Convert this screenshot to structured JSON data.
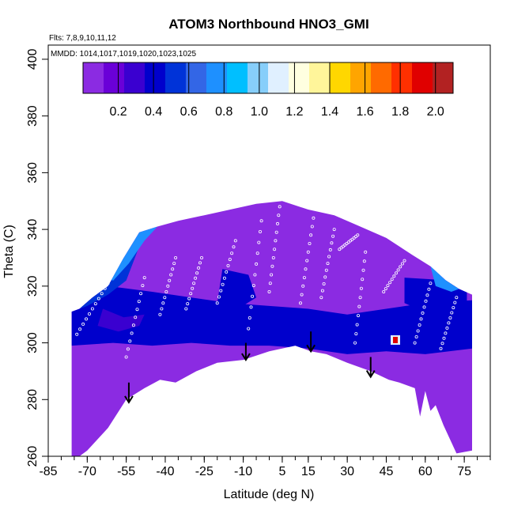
{
  "chart_data": {
    "type": "heatmap",
    "title": "ATOM3 Northbound HNO3_GMI",
    "flights_label": "Flts: 7,8,9,10,11,12",
    "dates_label": "MMDD: 1014,1017,1019,1020,1023,1025",
    "xlabel": "Latitude (deg N)",
    "ylabel": "Theta (C)",
    "xlim": [
      -85,
      85
    ],
    "ylim": [
      260,
      405
    ],
    "x_ticks": [
      -85,
      -70,
      -55,
      -40,
      -25,
      -10,
      5,
      15,
      30,
      45,
      60,
      75
    ],
    "y_ticks": [
      260,
      280,
      300,
      320,
      340,
      360,
      380,
      400
    ],
    "colorbar": {
      "range": [
        0.0,
        2.1
      ],
      "ticks": [
        0.2,
        0.4,
        0.6,
        0.8,
        1.0,
        1.2,
        1.4,
        1.6,
        1.8,
        2.0
      ],
      "tick_labels": [
        "0.2",
        "0.4",
        "0.6",
        "0.8",
        "1.0",
        "1.2",
        "1.4",
        "1.6",
        "1.8",
        "2.0"
      ],
      "colors": [
        "#8B2BE2",
        "#6A00D8",
        "#3A00D0",
        "#0000CC",
        "#0033D8",
        "#3366E6",
        "#1E90FF",
        "#00BFFF",
        "#87CEFA",
        "#E0F0FF",
        "#FFFFE0",
        "#FFF59A",
        "#FFD700",
        "#FFA500",
        "#FF6A00",
        "#FF3000",
        "#E00000",
        "#B22222"
      ]
    },
    "upper_boundary": [
      {
        "lat": -76,
        "theta": 311
      },
      {
        "lat": -73,
        "theta": 312
      },
      {
        "lat": -68,
        "theta": 316
      },
      {
        "lat": -62,
        "theta": 320
      },
      {
        "lat": -56,
        "theta": 330
      },
      {
        "lat": -50,
        "theta": 339
      },
      {
        "lat": -43,
        "theta": 341
      },
      {
        "lat": -35,
        "theta": 343
      },
      {
        "lat": -25,
        "theta": 345
      },
      {
        "lat": -15,
        "theta": 347
      },
      {
        "lat": -5,
        "theta": 349
      },
      {
        "lat": 5,
        "theta": 350
      },
      {
        "lat": 15,
        "theta": 347
      },
      {
        "lat": 25,
        "theta": 345
      },
      {
        "lat": 35,
        "theta": 341
      },
      {
        "lat": 45,
        "theta": 337
      },
      {
        "lat": 55,
        "theta": 331
      },
      {
        "lat": 62,
        "theta": 327
      },
      {
        "lat": 68,
        "theta": 322
      },
      {
        "lat": 73,
        "theta": 319
      },
      {
        "lat": 78,
        "theta": 317
      }
    ],
    "lower_boundary": [
      {
        "lat": 78,
        "theta": 262
      },
      {
        "lat": 72,
        "theta": 261
      },
      {
        "lat": 67,
        "theta": 271
      },
      {
        "lat": 64,
        "theta": 278
      },
      {
        "lat": 62,
        "theta": 276
      },
      {
        "lat": 60,
        "theta": 283
      },
      {
        "lat": 58,
        "theta": 274
      },
      {
        "lat": 56,
        "theta": 284
      },
      {
        "lat": 50,
        "theta": 286
      },
      {
        "lat": 46,
        "theta": 287
      },
      {
        "lat": 39,
        "theta": 290
      },
      {
        "lat": 30,
        "theta": 293
      },
      {
        "lat": 22,
        "theta": 296
      },
      {
        "lat": 16,
        "theta": 297
      },
      {
        "lat": 10,
        "theta": 299
      },
      {
        "lat": 0,
        "theta": 297
      },
      {
        "lat": -10,
        "theta": 294
      },
      {
        "lat": -20,
        "theta": 293
      },
      {
        "lat": -28,
        "theta": 290
      },
      {
        "lat": -36,
        "theta": 286
      },
      {
        "lat": -42,
        "theta": 287
      },
      {
        "lat": -48,
        "theta": 284
      },
      {
        "lat": -55,
        "theta": 280
      },
      {
        "lat": -62,
        "theta": 270
      },
      {
        "lat": -70,
        "theta": 262
      },
      {
        "lat": -73,
        "theta": 260
      },
      {
        "lat": -76,
        "theta": 260
      }
    ],
    "field_regions": [
      {
        "name": "deep-blue-troposphere",
        "value": 0.35,
        "points": [
          [
            -76,
            311
          ],
          [
            -62,
            320
          ],
          [
            -45,
            318
          ],
          [
            -30,
            316
          ],
          [
            -15,
            314
          ],
          [
            0,
            313
          ],
          [
            15,
            312
          ],
          [
            30,
            310
          ],
          [
            45,
            312
          ],
          [
            60,
            314
          ],
          [
            78,
            315
          ],
          [
            78,
            298
          ],
          [
            60,
            296
          ],
          [
            45,
            297
          ],
          [
            30,
            296
          ],
          [
            15,
            298
          ],
          [
            0,
            299
          ],
          [
            -15,
            299
          ],
          [
            -30,
            300
          ],
          [
            -45,
            299
          ],
          [
            -60,
            300
          ],
          [
            -76,
            299
          ]
        ]
      },
      {
        "name": "blue-upper-left",
        "value": 0.5,
        "points": [
          [
            -76,
            311
          ],
          [
            -73,
            312
          ],
          [
            -68,
            316
          ],
          [
            -62,
            320
          ],
          [
            -56,
            330
          ],
          [
            -50,
            334
          ],
          [
            -55,
            322
          ],
          [
            -62,
            317
          ],
          [
            -70,
            313
          ]
        ]
      },
      {
        "name": "light-blue-upper-left",
        "value": 0.7,
        "points": [
          [
            -66,
            323
          ],
          [
            -56,
            330
          ],
          [
            -50,
            339
          ],
          [
            -43,
            341
          ],
          [
            -48,
            336
          ],
          [
            -54,
            328
          ],
          [
            -60,
            322
          ]
        ]
      },
      {
        "name": "blue-patch-center",
        "value": 0.45,
        "points": [
          [
            -18,
            326
          ],
          [
            -8,
            324
          ],
          [
            -5,
            316
          ],
          [
            -12,
            312
          ],
          [
            -20,
            314
          ]
        ]
      },
      {
        "name": "blue-patch-right",
        "value": 0.45,
        "points": [
          [
            52,
            323
          ],
          [
            70,
            322
          ],
          [
            76,
            318
          ],
          [
            76,
            310
          ],
          [
            62,
            310
          ],
          [
            52,
            314
          ]
        ]
      },
      {
        "name": "light-blue-right",
        "value": 0.7,
        "points": [
          [
            62,
            327
          ],
          [
            68,
            322
          ],
          [
            73,
            319
          ],
          [
            70,
            318
          ],
          [
            64,
            320
          ]
        ]
      },
      {
        "name": "blue-band-lower-left",
        "value": 0.3,
        "points": [
          [
            -64,
            312
          ],
          [
            -56,
            309
          ],
          [
            -48,
            310
          ],
          [
            -50,
            306
          ],
          [
            -58,
            304
          ],
          [
            -66,
            306
          ]
        ]
      }
    ],
    "hotspot": {
      "lat": 48.5,
      "theta": 301,
      "value": 1.9
    },
    "hotspot_ring": {
      "lat": 48.5,
      "theta": 301,
      "value": 1.1
    },
    "arrows": [
      {
        "lat": -54,
        "theta_top": 286,
        "theta_bottom": 279
      },
      {
        "lat": -9,
        "theta_top": 300,
        "theta_bottom": 294
      },
      {
        "lat": 16,
        "theta_top": 304,
        "theta_bottom": 297
      },
      {
        "lat": 39,
        "theta_top": 295,
        "theta_bottom": 288
      }
    ],
    "flight_tracks": [
      {
        "lat_start": -74,
        "theta_start": 303,
        "lat_end": -62,
        "theta_end": 321
      },
      {
        "lat_start": -55,
        "theta_start": 295,
        "lat_end": -48,
        "theta_end": 323
      },
      {
        "lat_start": -42,
        "theta_start": 310,
        "lat_end": -36,
        "theta_end": 330
      },
      {
        "lat_start": -32,
        "theta_start": 312,
        "lat_end": -26,
        "theta_end": 330
      },
      {
        "lat_start": -20,
        "theta_start": 314,
        "lat_end": -13,
        "theta_end": 336
      },
      {
        "lat_start": -8,
        "theta_start": 305,
        "lat_end": -3,
        "theta_end": 343
      },
      {
        "lat_start": 0,
        "theta_start": 318,
        "lat_end": 4,
        "theta_end": 348
      },
      {
        "lat_start": 12,
        "theta_start": 314,
        "lat_end": 17,
        "theta_end": 344
      },
      {
        "lat_start": 20,
        "theta_start": 316,
        "lat_end": 25,
        "theta_end": 340
      },
      {
        "lat_start": 27,
        "theta_start": 333,
        "lat_end": 34,
        "theta_end": 338
      },
      {
        "lat_start": 33,
        "theta_start": 300,
        "lat_end": 37,
        "theta_end": 332
      },
      {
        "lat_start": 44,
        "theta_start": 318,
        "lat_end": 52,
        "theta_end": 329
      },
      {
        "lat_start": 56,
        "theta_start": 300,
        "lat_end": 62,
        "theta_end": 321
      },
      {
        "lat_start": 66,
        "theta_start": 298,
        "lat_end": 72,
        "theta_end": 316
      }
    ]
  }
}
